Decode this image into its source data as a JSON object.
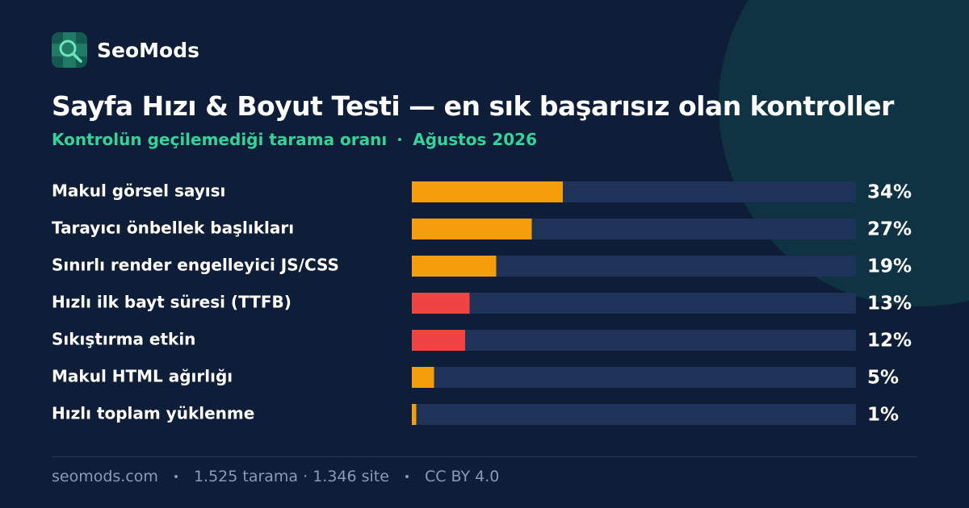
{
  "brand": "SeoMods",
  "chart_data": {
    "type": "bar",
    "orientation": "horizontal",
    "title": "Sayfa Hızı & Boyut Testi — en sık başarısız olan kontroller",
    "subtitle": "Kontrolün geçilemediği tarama oranı",
    "date": "Ağustos 2026",
    "categories": [
      "Makul görsel sayısı",
      "Tarayıcı önbellek başlıkları",
      "Sınırlı render engelleyici JS/CSS",
      "Hızlı ilk bayt süresi (TTFB)",
      "Sıkıştırma etkin",
      "Makul HTML ağırlığı",
      "Hızlı toplam yüklenme"
    ],
    "values": [
      34,
      27,
      19,
      13,
      12,
      5,
      1
    ],
    "value_labels": [
      "34%",
      "27%",
      "19%",
      "13%",
      "12%",
      "5%",
      "1%"
    ],
    "colors": [
      "#f59e0b",
      "#f59e0b",
      "#f59e0b",
      "#ef4444",
      "#ef4444",
      "#f59e0b",
      "#f59e0b"
    ],
    "track_color": "#1e3357",
    "xlim": [
      0,
      100
    ]
  },
  "footer": [
    "seomods.com",
    "1.525 tarama · 1.346 site",
    "CC BY 4.0"
  ]
}
